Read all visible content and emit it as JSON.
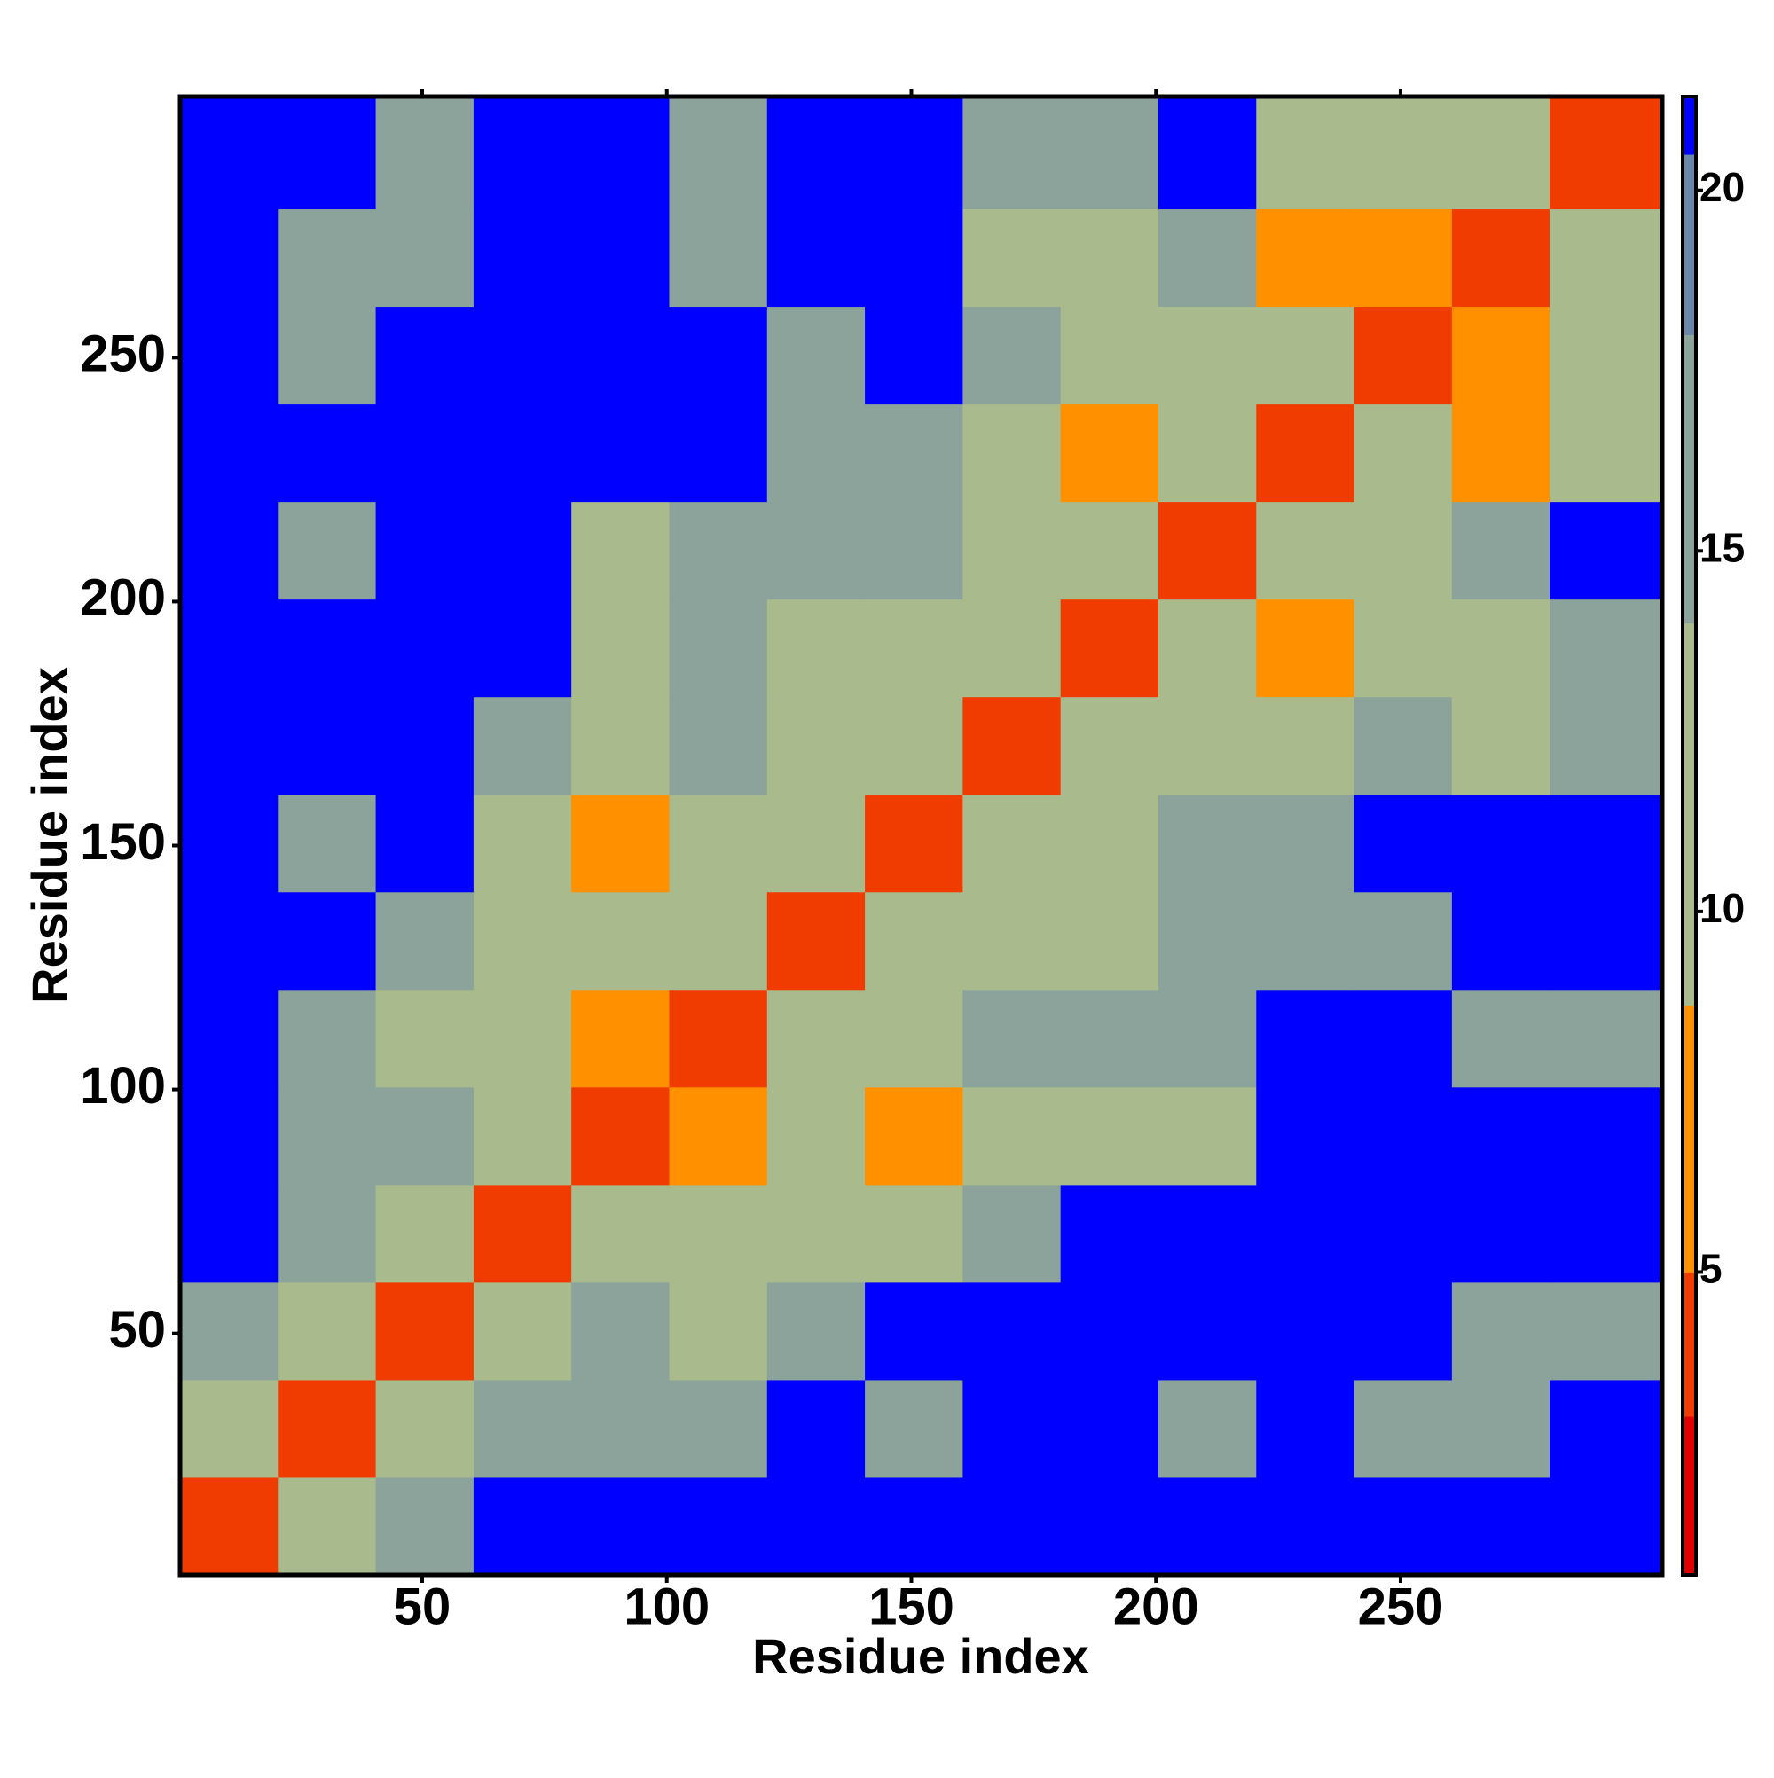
{
  "chart_data": {
    "type": "heatmap",
    "xlabel": "Residue index",
    "ylabel": "Residue index",
    "xlim": [
      0.5,
      303.5
    ],
    "ylim": [
      0.5,
      303.5
    ],
    "xticks": [
      50,
      100,
      150,
      200,
      250
    ],
    "yticks": [
      50,
      100,
      150,
      200,
      250
    ],
    "xbins": [
      0.5,
      20.5,
      40.5,
      60.5,
      80.5,
      100.5,
      120.5,
      140.5,
      160.5,
      180.5,
      200.5,
      220.5,
      240.5,
      260.5,
      280.5,
      303.5
    ],
    "ybins": [
      0.5,
      20.5,
      40.5,
      60.5,
      80.5,
      100.5,
      120.5,
      140.5,
      160.5,
      180.5,
      200.5,
      220.5,
      240.5,
      260.5,
      280.5,
      303.5
    ],
    "z": [
      [
        4,
        12,
        16,
        21,
        21,
        21,
        21,
        21,
        21,
        21,
        21,
        21,
        21,
        21,
        21
      ],
      [
        12,
        4,
        11,
        14,
        14,
        15,
        21,
        17,
        21,
        21,
        16,
        21,
        15,
        16,
        21
      ],
      [
        16,
        11,
        4,
        10,
        14,
        12,
        16,
        21,
        21,
        21,
        21,
        21,
        21,
        16,
        15
      ],
      [
        21,
        14,
        10,
        4,
        9,
        9,
        10,
        13,
        15,
        21,
        21,
        21,
        21,
        21,
        21
      ],
      [
        21,
        14,
        14,
        9,
        4,
        8,
        12,
        8,
        12,
        13,
        13,
        21,
        21,
        21,
        21
      ],
      [
        21,
        15,
        12,
        9,
        8,
        4,
        10,
        12,
        14,
        15,
        16,
        21,
        21,
        15,
        14
      ],
      [
        21,
        21,
        16,
        10,
        12,
        10,
        4,
        11,
        11,
        13,
        14,
        15,
        17,
        21,
        21
      ],
      [
        21,
        17,
        21,
        13,
        8,
        12,
        11,
        4,
        11,
        9,
        14,
        16,
        21,
        21,
        21
      ],
      [
        21,
        21,
        21,
        15,
        12,
        14,
        11,
        11,
        4,
        12,
        12,
        13,
        14,
        13,
        15
      ],
      [
        21,
        21,
        21,
        21,
        13,
        15,
        13,
        9,
        12,
        4,
        12,
        8,
        11,
        13,
        14
      ],
      [
        21,
        16,
        21,
        21,
        13,
        16,
        14,
        14,
        12,
        12,
        4,
        11,
        12,
        14,
        21
      ],
      [
        21,
        21,
        21,
        21,
        21,
        21,
        15,
        16,
        13,
        8,
        11,
        4,
        10,
        8,
        13
      ],
      [
        21,
        15,
        21,
        21,
        21,
        21,
        17,
        21,
        14,
        11,
        12,
        10,
        4,
        8,
        11
      ],
      [
        21,
        16,
        16,
        21,
        21,
        15,
        21,
        21,
        13,
        13,
        14,
        8,
        8,
        4,
        10
      ],
      [
        21,
        21,
        15,
        21,
        21,
        14,
        21,
        21,
        15,
        14,
        21,
        13,
        11,
        10,
        4
      ]
    ],
    "colorbar": {
      "zlim": [
        0.8,
        21.3
      ],
      "zticks": [
        5,
        10,
        15,
        20
      ],
      "bands": [
        {
          "from": 0.8,
          "to": 3,
          "color": "#e00000"
        },
        {
          "from": 3,
          "to": 5,
          "color": "#f03c00"
        },
        {
          "from": 5,
          "to": 8.7,
          "color": "#ff9000"
        },
        {
          "from": 8.7,
          "to": 14,
          "color": "#a9bb8c"
        },
        {
          "from": 14,
          "to": 18,
          "color": "#8ba39a"
        },
        {
          "from": 18,
          "to": 20.5,
          "color": "#6a86a8"
        },
        {
          "from": 20.5,
          "to": 21.3,
          "color": "#0000ff"
        }
      ]
    }
  }
}
